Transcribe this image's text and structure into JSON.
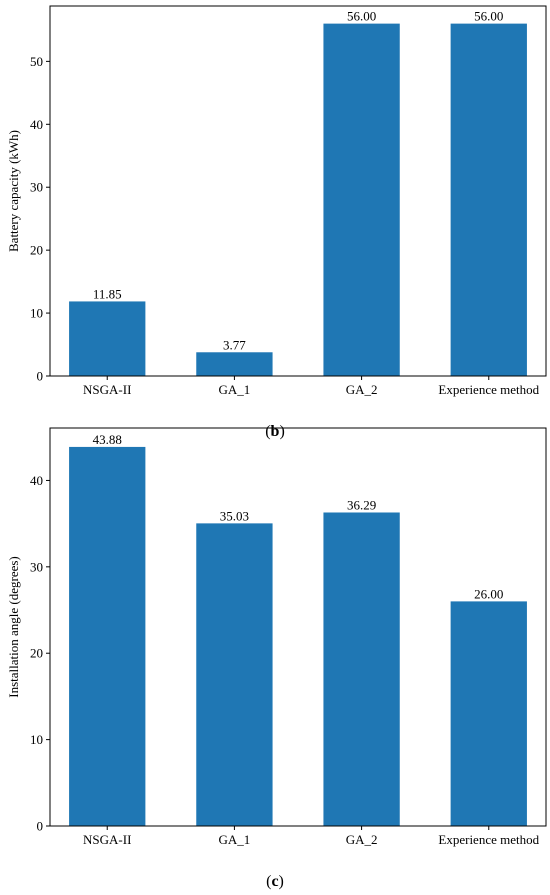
{
  "chart_data": [
    {
      "type": "bar",
      "panel_caption": "b",
      "categories": [
        "NSGA-II",
        "GA_1",
        "GA_2",
        "Experience method"
      ],
      "values": [
        11.85,
        3.77,
        56.0,
        56.0
      ],
      "value_labels": [
        "11.85",
        "3.77",
        "56.00",
        "56.00"
      ],
      "title": "",
      "xlabel": "",
      "ylabel": "Battery capacity (kWh)",
      "ylim": [
        0,
        58.8
      ],
      "yticks": [
        0,
        10,
        20,
        30,
        40,
        50
      ],
      "grid": false,
      "bar_color": "#1f77b4"
    },
    {
      "type": "bar",
      "panel_caption": "c",
      "categories": [
        "NSGA-II",
        "GA_1",
        "GA_2",
        "Experience method"
      ],
      "values": [
        43.88,
        35.03,
        36.29,
        26.0
      ],
      "value_labels": [
        "43.88",
        "35.03",
        "36.29",
        "26.00"
      ],
      "title": "",
      "xlabel": "",
      "ylabel": "Installation angle (degrees)",
      "ylim": [
        0,
        46.07
      ],
      "yticks": [
        0,
        10,
        20,
        30,
        40
      ],
      "grid": false,
      "bar_color": "#1f77b4"
    }
  ]
}
